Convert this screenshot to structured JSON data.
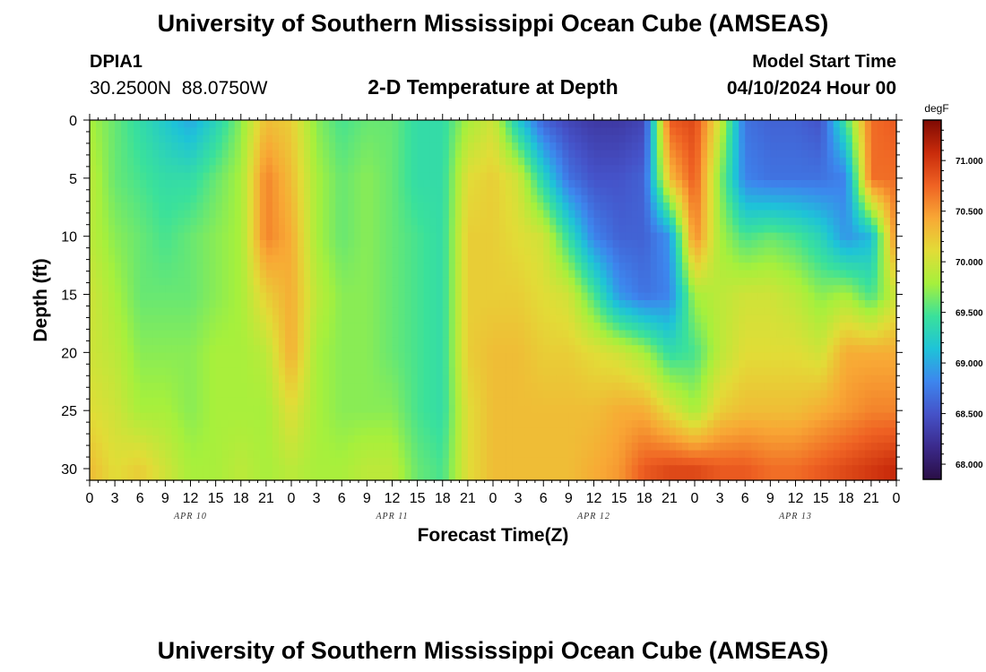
{
  "header": {
    "title": "University of Southern Mississippi Ocean Cube (AMSEAS)",
    "station_id": "DPIA1",
    "station_coords": "30.2500N  88.0750W",
    "subtitle": "2-D Temperature at Depth",
    "model_start_label": "Model Start Time",
    "model_start_value": "04/10/2024 Hour 00"
  },
  "footer": {
    "title": "University of Southern Mississippi Ocean Cube (AMSEAS)"
  },
  "chart_data": {
    "type": "heatmap",
    "title": "2-D Temperature at Depth",
    "xlabel": "Forecast Time(Z)",
    "ylabel": "Depth (ft)",
    "ylim": [
      0,
      31
    ],
    "xlim_hours": [
      0,
      96
    ],
    "y_ticks": [
      "0",
      "5",
      "10",
      "15",
      "20",
      "25",
      "30"
    ],
    "x_ticks": [
      "0",
      "3",
      "6",
      "9",
      "12",
      "15",
      "18",
      "21",
      "0",
      "3",
      "6",
      "9",
      "12",
      "15",
      "18",
      "21",
      "0",
      "3",
      "6",
      "9",
      "12",
      "15",
      "18",
      "21",
      "0",
      "3",
      "6",
      "9",
      "12",
      "15",
      "18",
      "21",
      "0"
    ],
    "day_labels": [
      "APR 10",
      "APR 11",
      "APR 12",
      "APR 13"
    ],
    "colorbar": {
      "unit": "degF",
      "min": 67.85,
      "max": 71.4,
      "ticks": [
        "71.000",
        "70.500",
        "70.000",
        "69.500",
        "69.000",
        "68.500",
        "68.000"
      ],
      "colormap": [
        "#2a0e45",
        "#3b2a8c",
        "#4552c8",
        "#3d86ee",
        "#1ec3d8",
        "#3ae19b",
        "#a6f03c",
        "#e2dc37",
        "#f8a835",
        "#ef6223",
        "#c92b0b",
        "#7e0a03"
      ]
    },
    "depth_levels_ft": [
      0,
      5,
      10,
      15,
      20,
      25,
      30
    ],
    "times_h": [
      0,
      3,
      6,
      9,
      12,
      15,
      18,
      21,
      24,
      27,
      30,
      33,
      36,
      39,
      42,
      45,
      48,
      51,
      54,
      57,
      60,
      63,
      66,
      69,
      72,
      75,
      78,
      81,
      84,
      87,
      90,
      93,
      96
    ],
    "values_degF": [
      [
        69.8,
        69.6,
        69.4,
        69.2,
        69.0,
        69.3,
        69.7,
        70.3,
        70.2,
        69.7,
        69.5,
        69.6,
        69.6,
        69.4,
        69.4,
        69.8,
        70.0,
        69.2,
        68.6,
        68.4,
        68.3,
        68.3,
        68.4,
        70.8,
        70.9,
        70.0,
        68.7,
        68.6,
        68.6,
        68.5,
        69.5,
        70.7,
        70.8
      ],
      [
        69.9,
        69.6,
        69.5,
        69.4,
        69.4,
        69.6,
        69.8,
        70.6,
        70.3,
        69.8,
        69.6,
        69.7,
        69.6,
        69.4,
        69.4,
        70.1,
        70.2,
        70.0,
        69.3,
        68.7,
        68.5,
        68.5,
        68.6,
        70.3,
        70.8,
        69.7,
        68.8,
        68.7,
        68.7,
        68.7,
        68.8,
        70.7,
        70.7
      ],
      [
        69.9,
        69.7,
        69.6,
        69.5,
        69.6,
        69.7,
        69.8,
        70.6,
        70.4,
        69.8,
        69.6,
        69.7,
        69.6,
        69.5,
        69.4,
        70.2,
        70.2,
        70.1,
        70.0,
        69.4,
        68.8,
        68.6,
        68.6,
        68.9,
        70.6,
        69.8,
        69.5,
        69.6,
        69.5,
        69.3,
        68.9,
        69.1,
        70.6
      ],
      [
        70.0,
        69.8,
        69.6,
        69.6,
        69.6,
        69.7,
        69.8,
        70.2,
        70.4,
        69.9,
        69.7,
        69.7,
        69.6,
        69.5,
        69.4,
        70.2,
        70.2,
        70.2,
        70.1,
        70.0,
        69.5,
        68.9,
        68.7,
        68.8,
        69.8,
        69.9,
        70.0,
        70.0,
        69.9,
        69.7,
        69.8,
        69.5,
        70.0
      ],
      [
        70.0,
        69.9,
        69.7,
        69.7,
        69.7,
        69.8,
        69.8,
        69.9,
        70.4,
        69.8,
        69.7,
        69.7,
        69.6,
        69.5,
        69.4,
        70.2,
        70.3,
        70.3,
        70.2,
        70.2,
        70.1,
        70.0,
        69.8,
        69.4,
        69.5,
        69.9,
        70.1,
        70.1,
        70.1,
        70.0,
        70.4,
        70.4,
        70.4
      ],
      [
        70.1,
        70.0,
        69.8,
        69.8,
        69.7,
        69.8,
        69.8,
        69.8,
        70.1,
        69.8,
        69.7,
        69.7,
        69.7,
        69.5,
        69.4,
        70.1,
        70.3,
        70.3,
        70.3,
        70.3,
        70.3,
        70.4,
        70.4,
        70.1,
        69.8,
        70.2,
        70.3,
        70.3,
        70.3,
        70.4,
        70.5,
        70.6,
        70.6
      ],
      [
        70.3,
        70.1,
        70.2,
        70.0,
        69.8,
        69.8,
        69.9,
        69.8,
        69.9,
        69.8,
        69.8,
        69.9,
        69.9,
        69.6,
        69.5,
        70.1,
        70.3,
        70.3,
        70.3,
        70.3,
        70.4,
        70.5,
        70.8,
        70.9,
        70.9,
        70.8,
        70.8,
        70.7,
        70.7,
        70.8,
        70.9,
        71.0,
        71.1
      ]
    ]
  }
}
